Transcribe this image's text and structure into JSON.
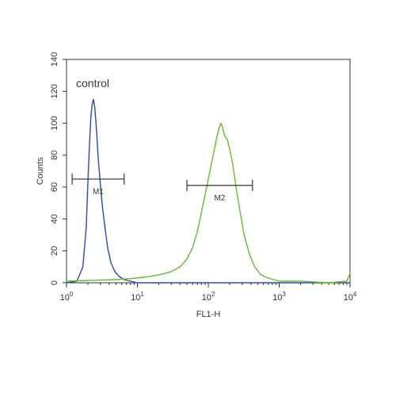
{
  "chart_data": {
    "type": "line",
    "title": "",
    "xlabel": "FL1-H",
    "ylabel": "Counts",
    "x_scale": "log",
    "xlim": [
      1,
      10000
    ],
    "ylim": [
      0,
      140
    ],
    "x_ticks": [
      {
        "base": "10",
        "exp": "0"
      },
      {
        "base": "10",
        "exp": "1"
      },
      {
        "base": "10",
        "exp": "2"
      },
      {
        "base": "10",
        "exp": "3"
      },
      {
        "base": "10",
        "exp": "4"
      }
    ],
    "y_ticks": [
      "0",
      "20",
      "40",
      "60",
      "80",
      "100",
      "120",
      "140"
    ],
    "annotation": "control",
    "series": [
      {
        "color": "#2b4ba8",
        "x": [
          1.0,
          1.4,
          1.7,
          1.9,
          2.0,
          2.1,
          2.2,
          2.3,
          2.4,
          2.5,
          2.6,
          2.7,
          2.8,
          3.0,
          3.2,
          3.5,
          3.8,
          4.2,
          4.8,
          5.5,
          6.5,
          8,
          10,
          20,
          100,
          1000,
          10000
        ],
        "y": [
          0,
          1,
          10,
          35,
          62,
          85,
          103,
          112,
          115,
          110,
          101,
          90,
          78,
          62,
          48,
          34,
          22,
          13,
          7,
          4,
          2,
          1,
          0,
          0,
          0,
          0,
          0
        ]
      },
      {
        "color": "#66bb33",
        "x": [
          1,
          5,
          10,
          15,
          20,
          25,
          30,
          40,
          50,
          60,
          70,
          80,
          90,
          100,
          110,
          120,
          130,
          140,
          150,
          160,
          170,
          185,
          200,
          220,
          250,
          280,
          320,
          380,
          450,
          550,
          700,
          1000,
          2000,
          5000,
          9000,
          10000
        ],
        "y": [
          1,
          2,
          3,
          4,
          5,
          6,
          7,
          10,
          15,
          22,
          32,
          44,
          55,
          65,
          74,
          82,
          90,
          96,
          100,
          97,
          92,
          90,
          84,
          75,
          58,
          45,
          30,
          18,
          10,
          5,
          3,
          1,
          1,
          0,
          1,
          6
        ]
      }
    ],
    "markers": [
      {
        "label": "M1",
        "x_range": [
          1.2,
          6.5
        ],
        "y": 65
      },
      {
        "label": "M2",
        "x_range": [
          50,
          420
        ],
        "y": 61
      }
    ]
  }
}
